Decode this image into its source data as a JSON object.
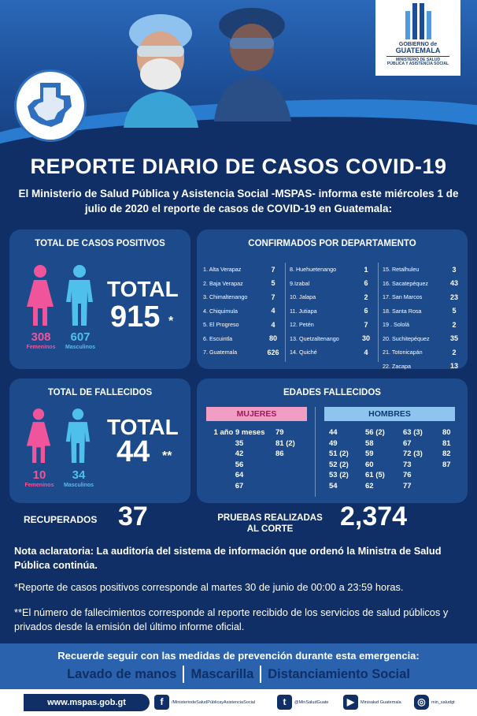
{
  "logo": {
    "line1": "GOBIERNO de",
    "line2": "GUATEMALA",
    "line3": "MINISTERIO DE SALUD",
    "line4": "PÚBLICA Y ASISTENCIA SOCIAL"
  },
  "title": "REPORTE DIARIO DE CASOS COVID-19",
  "intro": "El Ministerio de Salud Pública y Asistencia Social -MSPAS- informa este miércoles 1 de julio de 2020 el reporte de casos de COVID-19 en Guatemala:",
  "positives": {
    "title": "TOTAL DE CASOS POSITIVOS",
    "female_count": "308",
    "female_label": "Femeninos",
    "male_count": "607",
    "male_label": "Masculinos",
    "total_label": "TOTAL",
    "total_value": "915",
    "asterisk": "*"
  },
  "departments": {
    "title": "CONFIRMADOS POR DEPARTAMENTO",
    "col1": [
      {
        "name": "1. Alta Verapaz",
        "value": "7"
      },
      {
        "name": "2. Baja Verapaz",
        "value": "5"
      },
      {
        "name": "3. Chimaltenango",
        "value": "7"
      },
      {
        "name": "4. Chiquimula",
        "value": "4"
      },
      {
        "name": "5. El Progreso",
        "value": "4"
      },
      {
        "name": "6. Escuintla",
        "value": "80"
      },
      {
        "name": "7. Guatemala",
        "value": "626"
      }
    ],
    "col2": [
      {
        "name": "8. Huehuetenango",
        "value": "1"
      },
      {
        "name": "9.Izabal",
        "value": "6"
      },
      {
        "name": "10. Jalapa",
        "value": "2"
      },
      {
        "name": "11. Jutiapa",
        "value": "6"
      },
      {
        "name": "12. Petén",
        "value": "7"
      },
      {
        "name": "13. Quetzaltenango",
        "value": "30"
      },
      {
        "name": "14. Quiché",
        "value": "4"
      }
    ],
    "col3": [
      {
        "name": "15. Retalhuleu",
        "value": "3"
      },
      {
        "name": "16. Sacatepéquez",
        "value": "43"
      },
      {
        "name": "17. San Marcos",
        "value": "23"
      },
      {
        "name": "18. Santa Rosa",
        "value": "5"
      },
      {
        "name": "19 . Sololá",
        "value": "2"
      },
      {
        "name": "20. Suchitepéquez",
        "value": "35"
      },
      {
        "name": "21. Totonicapán",
        "value": "2"
      },
      {
        "name": "22. Zacapa",
        "value": "13"
      }
    ]
  },
  "deaths": {
    "title": "TOTAL DE FALLECIDOS",
    "female_count": "10",
    "female_label": "Femeninos",
    "male_count": "34",
    "male_label": "Masculinos",
    "total_label": "TOTAL",
    "total_value": "44",
    "asterisk": "**"
  },
  "ages": {
    "title": "EDADES  FALLECIDOS",
    "women_label": "MUJERES",
    "men_label": "HOMBRES",
    "women_col1": [
      "1 año 9 meses",
      "35",
      "42",
      "56",
      "64",
      "67"
    ],
    "women_col2": [
      "79",
      "81 (2)",
      "86"
    ],
    "men_col1": [
      "44",
      "49",
      "51 (2)",
      "52 (2)",
      "53 (2)",
      "54"
    ],
    "men_col2": [
      "56 (2)",
      "58",
      "59",
      "60",
      "61 (5)",
      "62"
    ],
    "men_col3": [
      "63 (3)",
      "67",
      "72 (3)",
      "73",
      "76",
      "77"
    ],
    "men_col4": [
      "80",
      "81",
      "82",
      "87"
    ]
  },
  "recovered": {
    "label": "RECUPERADOS",
    "value": "37"
  },
  "tests": {
    "label": "PRUEBAS REALIZADAS AL CORTE",
    "value": "2,374"
  },
  "notes": {
    "note1": "Nota aclaratoria: La auditoría del sistema de información que ordenó la Ministra de Salud Pública continúa.",
    "note2": "*Reporte de casos positivos corresponde al martes 30 de junio de 00:00 a 23:59 horas.",
    "note3": "**El número de fallecimientos corresponde al reporte recibido de los servicios de salud públicos y privados desde la emisión del último informe oficial."
  },
  "prevention": {
    "title": "Recuerde seguir con las medidas de prevención durante esta emergencia:",
    "item1": "Lavado de manos",
    "item2": "Mascarilla",
    "item3": "Distanciamiento Social"
  },
  "footer": {
    "url": "www.mspas.gob.gt",
    "facebook": "/MinisteriodeSaludPúblicayAsistenciaSocial",
    "twitter": "@MinSaludGuate",
    "youtube": "Minisalud Guatemala",
    "instagram": "min_saludgt"
  },
  "colors": {
    "background": "#0f2f66",
    "panel": "#1c4a8a",
    "female": "#f0559c",
    "male": "#4fc0ec"
  }
}
